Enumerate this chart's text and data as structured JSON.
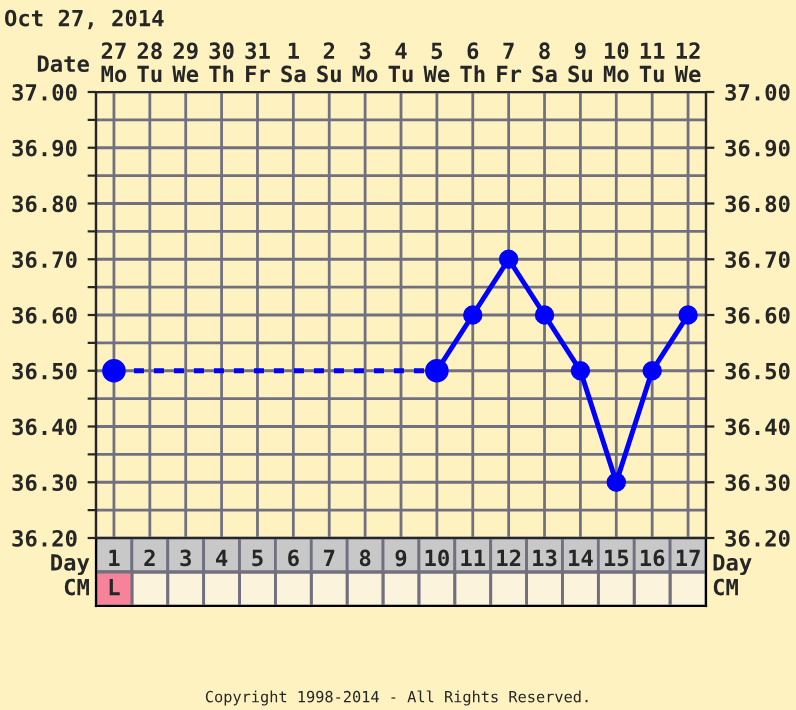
{
  "chart_data": {
    "type": "line",
    "title": "Oct 27, 2014",
    "xlabel": "Day",
    "x2label": "Date",
    "categories": [
      "1",
      "2",
      "3",
      "4",
      "5",
      "6",
      "7",
      "8",
      "9",
      "10",
      "11",
      "12",
      "13",
      "14",
      "15",
      "16",
      "17"
    ],
    "ylim": [
      36.2,
      37.0
    ],
    "yticks": [
      {
        "value": 36.2,
        "label": "36.20"
      },
      {
        "value": 36.25,
        "label": null
      },
      {
        "value": 36.3,
        "label": "36.30"
      },
      {
        "value": 36.35,
        "label": null
      },
      {
        "value": 36.4,
        "label": "36.40"
      },
      {
        "value": 36.45,
        "label": null
      },
      {
        "value": 36.5,
        "label": "36.50"
      },
      {
        "value": 36.55,
        "label": null
      },
      {
        "value": 36.6,
        "label": "36.60"
      },
      {
        "value": 36.65,
        "label": null
      },
      {
        "value": 36.7,
        "label": "36.70"
      },
      {
        "value": 36.75,
        "label": null
      },
      {
        "value": 36.8,
        "label": "36.80"
      },
      {
        "value": 36.85,
        "label": null
      },
      {
        "value": 36.9,
        "label": "36.90"
      },
      {
        "value": 36.95,
        "label": null
      },
      {
        "value": 37.0,
        "label": "37.00"
      }
    ],
    "y2lim": [
      36.2,
      37.0
    ],
    "y2ticks": [
      {
        "value": 36.2,
        "label": "36.20"
      },
      {
        "value": 36.3,
        "label": "36.30"
      },
      {
        "value": 36.4,
        "label": "36.40"
      },
      {
        "value": 36.5,
        "label": "36.50"
      },
      {
        "value": 36.6,
        "label": "36.60"
      },
      {
        "value": 36.7,
        "label": "36.70"
      },
      {
        "value": 36.8,
        "label": "36.80"
      },
      {
        "value": 36.9,
        "label": "36.90"
      },
      {
        "value": 37.0,
        "label": "37.00"
      }
    ],
    "grid": true,
    "marker": "circle",
    "series": [
      {
        "color": "#0000ff",
        "line_style": "dotted",
        "values": [
          36.5,
          null,
          null,
          null,
          null,
          null,
          null,
          null,
          null,
          36.5,
          null,
          null,
          null,
          null,
          null,
          null,
          null
        ]
      },
      {
        "color": "#0000ff",
        "line_style": "solid",
        "values": [
          null,
          null,
          null,
          null,
          null,
          null,
          null,
          null,
          null,
          36.5,
          36.6,
          36.7,
          36.6,
          36.5,
          36.3,
          36.5,
          36.6
        ]
      }
    ],
    "annotations": [
      "CM",
      "L",
      "27\nMo",
      "28\nTu",
      "29\nWe",
      "30\nTh",
      "31\nFr",
      "1\nSa",
      "2\nSu",
      "3\nMo",
      "4\nTu",
      "5\nWe",
      "6\nTh",
      "7\nFr",
      "8\nSa",
      "9\nSu",
      "10\nMo",
      "11\nTu",
      "12\nWe",
      "Copyright 1998-2014 - All Rights Reserved."
    ]
  }
}
